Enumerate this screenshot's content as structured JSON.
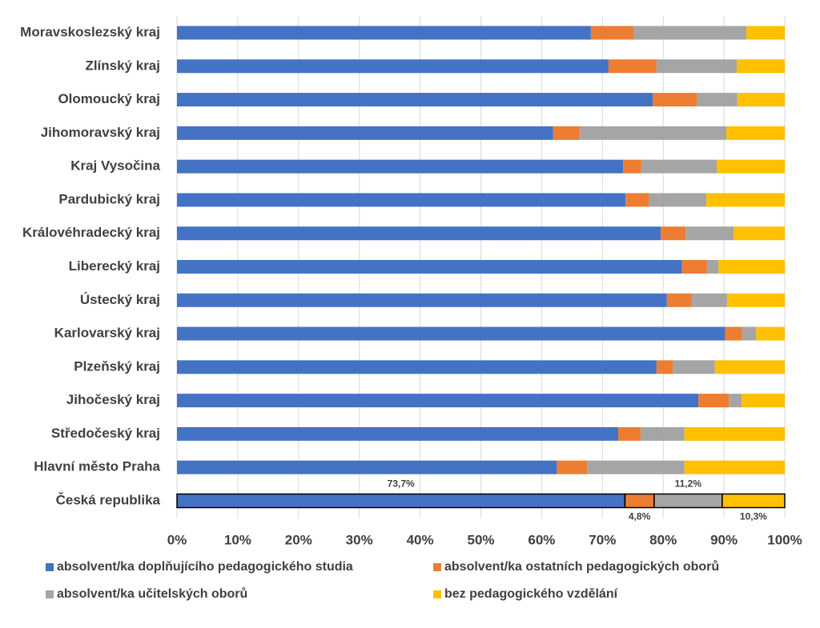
{
  "chart_data": {
    "type": "stacked_bar_horizontal",
    "categories": [
      "Moravskoslezský kraj",
      "Zlínský kraj",
      "Olomoucký kraj",
      "Jihomoravský kraj",
      "Kraj Vysočina",
      "Pardubický kraj",
      "Královéhradecký kraj",
      "Liberecký kraj",
      "Ústecký kraj",
      "Karlovarský kraj",
      "Plzeňský kraj",
      "Jihočeský kraj",
      "Středočeský kraj",
      "Hlavní město Praha",
      "Česká republika"
    ],
    "series": [
      {
        "name": "absolvent/ka doplňujícího pedagogického studia",
        "color": "#4472c4",
        "values": [
          68.1,
          71.0,
          78.3,
          61.9,
          73.4,
          73.8,
          79.6,
          83.1,
          80.6,
          90.2,
          78.9,
          85.8,
          72.6,
          62.5,
          73.7
        ],
        "value_labels": [
          null,
          null,
          null,
          null,
          null,
          null,
          null,
          null,
          null,
          null,
          null,
          null,
          null,
          null,
          "73,7%"
        ]
      },
      {
        "name": "absolvent/ka ostatních pedagogických oborů",
        "color": "#ed7d31",
        "values": [
          7.0,
          7.9,
          7.3,
          4.4,
          3.0,
          3.9,
          4.1,
          4.1,
          4.1,
          2.8,
          2.7,
          5.0,
          3.7,
          5.0,
          4.8
        ],
        "value_labels": [
          null,
          null,
          null,
          null,
          null,
          null,
          null,
          null,
          null,
          null,
          null,
          null,
          null,
          null,
          "4,8%"
        ]
      },
      {
        "name": "absolvent/ka učitelských oborů",
        "color": "#a5a5a5",
        "values": [
          18.6,
          13.2,
          6.6,
          24.1,
          12.4,
          9.4,
          7.9,
          1.9,
          5.8,
          2.3,
          6.9,
          2.1,
          7.2,
          16.0,
          11.2
        ],
        "value_labels": [
          null,
          null,
          null,
          null,
          null,
          null,
          null,
          null,
          null,
          null,
          null,
          null,
          null,
          null,
          "11,2%"
        ]
      },
      {
        "name": "bez pedagogického vzdělání",
        "color": "#ffc000",
        "values": [
          6.3,
          7.9,
          7.8,
          9.6,
          11.2,
          12.9,
          8.4,
          10.9,
          9.5,
          4.7,
          11.5,
          7.1,
          16.5,
          16.5,
          10.3
        ],
        "value_labels": [
          null,
          null,
          null,
          null,
          null,
          null,
          null,
          null,
          null,
          null,
          null,
          null,
          null,
          null,
          "10,3%"
        ]
      }
    ],
    "xlim": [
      0,
      100
    ],
    "xticks": [
      {
        "value": 0,
        "label": "0%"
      },
      {
        "value": 10,
        "label": "10%"
      },
      {
        "value": 20,
        "label": "20%"
      },
      {
        "value": 30,
        "label": "30%"
      },
      {
        "value": 40,
        "label": "40%"
      },
      {
        "value": 50,
        "label": "50%"
      },
      {
        "value": 60,
        "label": "60%"
      },
      {
        "value": 70,
        "label": "70%"
      },
      {
        "value": 80,
        "label": "80%"
      },
      {
        "value": 90,
        "label": "90%"
      },
      {
        "value": 100,
        "label": "100%"
      }
    ],
    "grid": true,
    "legend": "bottom"
  }
}
